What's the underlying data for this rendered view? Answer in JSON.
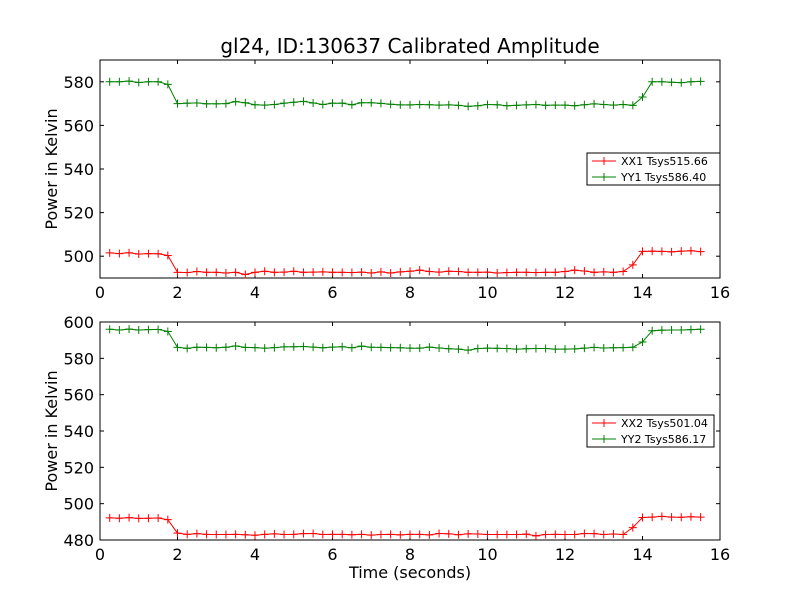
{
  "title": "gl24, ID:130637 Calibrated Amplitude",
  "chart_data": [
    {
      "type": "line",
      "ylabel": "Power in Kelvin",
      "xlabel": "",
      "xlim": [
        0,
        16
      ],
      "ylim": [
        490,
        590
      ],
      "xticks": [
        0,
        2,
        4,
        6,
        8,
        10,
        12,
        14,
        16
      ],
      "yticks": [
        500,
        520,
        540,
        560,
        580
      ],
      "legend_position": "center-right",
      "grid": false,
      "x": [
        0.25,
        0.5,
        0.75,
        1.0,
        1.25,
        1.5,
        1.75,
        2.0,
        2.25,
        2.5,
        2.75,
        3.0,
        3.25,
        3.5,
        3.75,
        4.0,
        4.25,
        4.5,
        4.75,
        5.0,
        5.25,
        5.5,
        5.75,
        6.0,
        6.25,
        6.5,
        6.75,
        7.0,
        7.25,
        7.5,
        7.75,
        8.0,
        8.25,
        8.5,
        8.75,
        9.0,
        9.25,
        9.5,
        9.75,
        10.0,
        10.25,
        10.5,
        10.75,
        11.0,
        11.25,
        11.5,
        11.75,
        12.0,
        12.25,
        12.5,
        12.75,
        13.0,
        13.25,
        13.5,
        13.75,
        14.0,
        14.25,
        14.5,
        14.75,
        15.0,
        15.25,
        15.5
      ],
      "series": [
        {
          "name": "XX1 Tsys515.66",
          "color": "#ff0000",
          "values": [
            501.5,
            501.2,
            501.6,
            501.0,
            501.2,
            501.1,
            500.3,
            492.6,
            492.5,
            493.0,
            492.6,
            492.6,
            492.3,
            492.6,
            491.6,
            492.6,
            493.1,
            492.6,
            492.7,
            493.1,
            492.6,
            492.7,
            492.8,
            492.6,
            492.6,
            492.5,
            492.7,
            492.3,
            492.8,
            492.3,
            492.8,
            493.1,
            493.6,
            493.0,
            492.7,
            493.1,
            493.0,
            492.6,
            492.6,
            492.7,
            492.3,
            492.5,
            492.6,
            492.6,
            492.5,
            492.6,
            492.6,
            493.0,
            493.6,
            493.2,
            492.6,
            492.8,
            492.6,
            493.0,
            496.0,
            502.2,
            502.3,
            502.2,
            502.0,
            502.3,
            502.5,
            502.1
          ]
        },
        {
          "name": "YY1 Tsys586.40",
          "color": "#008000",
          "values": [
            580.0,
            580.0,
            580.3,
            579.7,
            580.0,
            580.0,
            578.8,
            570.0,
            570.2,
            570.3,
            569.9,
            569.9,
            570.0,
            570.9,
            570.4,
            569.5,
            569.3,
            569.6,
            570.2,
            570.6,
            571.0,
            570.3,
            569.6,
            570.2,
            570.2,
            569.5,
            570.4,
            570.4,
            570.1,
            569.7,
            569.4,
            569.4,
            569.6,
            569.5,
            569.3,
            569.4,
            569.2,
            568.7,
            569.0,
            569.6,
            569.5,
            569.0,
            569.2,
            569.4,
            569.6,
            569.2,
            569.3,
            569.3,
            569.0,
            569.5,
            569.9,
            569.6,
            569.3,
            569.6,
            569.2,
            573.0,
            580.0,
            580.0,
            579.8,
            579.6,
            580.0,
            580.2
          ]
        }
      ]
    },
    {
      "type": "line",
      "ylabel": "Power in Kelvin",
      "xlabel": "Time (seconds)",
      "xlim": [
        0,
        16
      ],
      "ylim": [
        480,
        600
      ],
      "xticks": [
        0,
        2,
        4,
        6,
        8,
        10,
        12,
        14,
        16
      ],
      "yticks": [
        480,
        500,
        520,
        540,
        560,
        580,
        600
      ],
      "legend_position": "center-right",
      "grid": false,
      "x": [
        0.25,
        0.5,
        0.75,
        1.0,
        1.25,
        1.5,
        1.75,
        2.0,
        2.25,
        2.5,
        2.75,
        3.0,
        3.25,
        3.5,
        3.75,
        4.0,
        4.25,
        4.5,
        4.75,
        5.0,
        5.25,
        5.5,
        5.75,
        6.0,
        6.25,
        6.5,
        6.75,
        7.0,
        7.25,
        7.5,
        7.75,
        8.0,
        8.25,
        8.5,
        8.75,
        9.0,
        9.25,
        9.5,
        9.75,
        10.0,
        10.25,
        10.5,
        10.75,
        11.0,
        11.25,
        11.5,
        11.75,
        12.0,
        12.25,
        12.5,
        12.75,
        13.0,
        13.25,
        13.5,
        13.75,
        14.0,
        14.25,
        14.5,
        14.75,
        15.0,
        15.25,
        15.5
      ],
      "series": [
        {
          "name": "XX2 Tsys501.04",
          "color": "#ff0000",
          "values": [
            492.2,
            492.0,
            492.3,
            491.9,
            492.0,
            492.1,
            491.2,
            483.8,
            483.1,
            483.5,
            483.1,
            483.0,
            483.0,
            483.1,
            482.9,
            482.6,
            483.1,
            483.4,
            483.0,
            483.1,
            483.5,
            483.6,
            483.0,
            483.1,
            483.1,
            482.9,
            483.1,
            482.7,
            483.0,
            483.1,
            482.8,
            483.1,
            483.1,
            482.8,
            483.6,
            483.4,
            482.9,
            483.4,
            483.3,
            483.0,
            483.0,
            483.0,
            483.0,
            483.2,
            482.3,
            483.0,
            483.1,
            483.0,
            483.0,
            483.6,
            483.5,
            483.0,
            483.3,
            483.0,
            486.8,
            492.4,
            492.6,
            493.0,
            492.6,
            492.5,
            492.8,
            492.6
          ]
        },
        {
          "name": "YY2 Tsys586.17",
          "color": "#008000",
          "values": [
            596.0,
            595.6,
            596.1,
            595.6,
            595.8,
            595.9,
            594.8,
            586.0,
            585.5,
            586.1,
            586.0,
            585.8,
            586.1,
            586.8,
            586.0,
            585.9,
            585.6,
            585.9,
            586.3,
            586.4,
            586.5,
            586.2,
            585.8,
            586.2,
            586.4,
            585.8,
            586.7,
            586.1,
            586.0,
            585.9,
            585.8,
            585.6,
            585.6,
            586.2,
            585.7,
            585.3,
            585.1,
            584.5,
            585.4,
            585.6,
            585.5,
            585.4,
            585.1,
            585.3,
            585.4,
            585.4,
            585.1,
            585.1,
            585.2,
            585.6,
            586.0,
            585.7,
            585.8,
            585.9,
            586.1,
            589.0,
            595.2,
            595.5,
            595.6,
            595.6,
            595.8,
            596.0
          ]
        }
      ]
    }
  ]
}
